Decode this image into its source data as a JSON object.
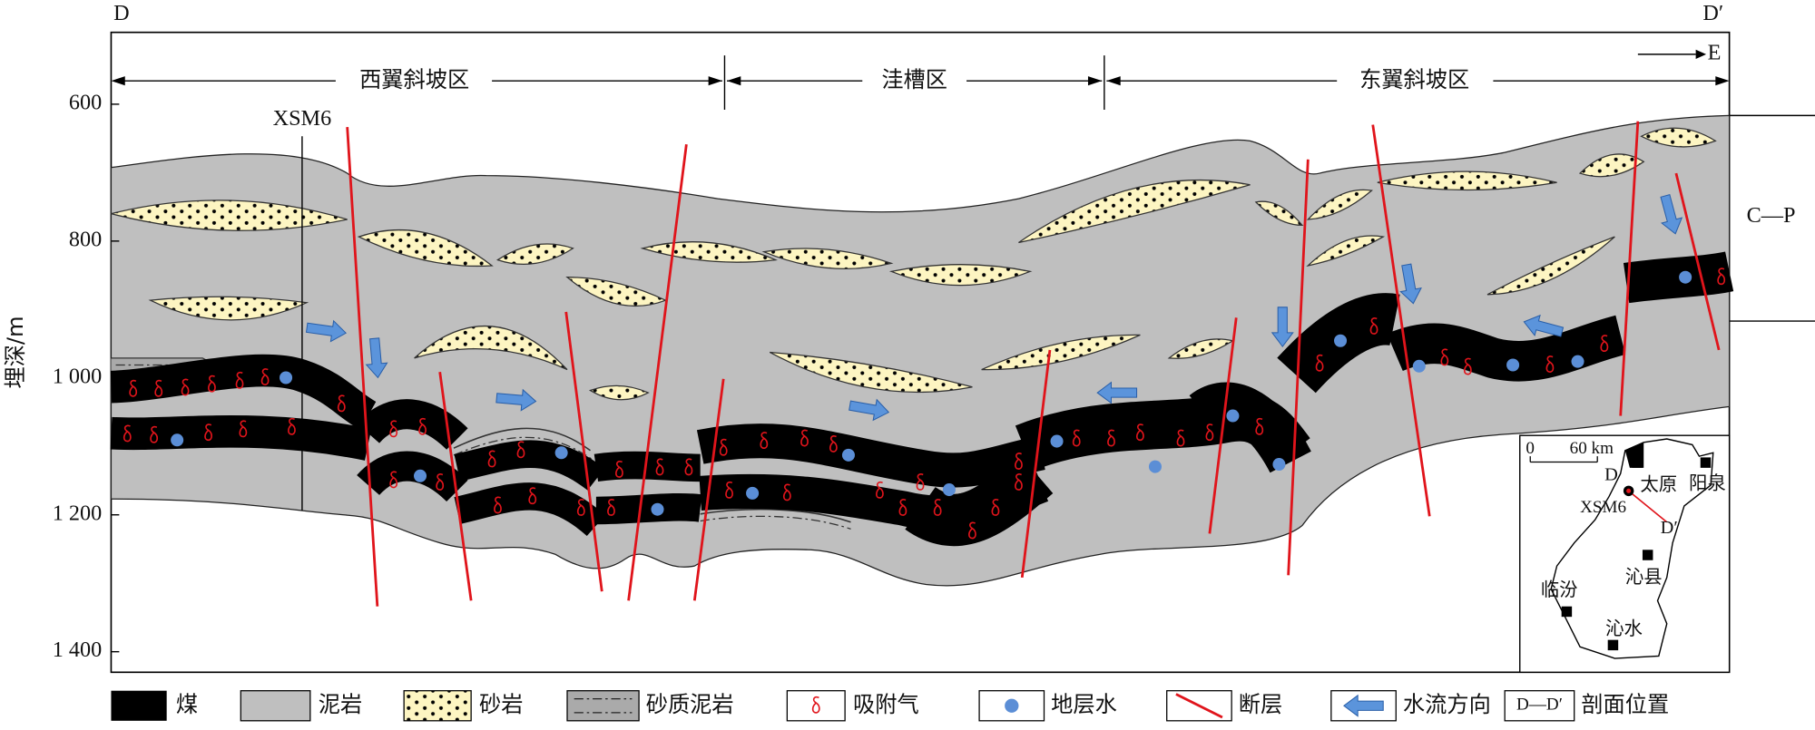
{
  "header": {
    "left_label": "D",
    "right_label": "D′",
    "direction": "E"
  },
  "zones": [
    "西翼斜坡区",
    "洼槽区",
    "东翼斜坡区"
  ],
  "well": "XSM6",
  "strata_label": "C—P",
  "depth_axis": {
    "title": "埋深/m",
    "lim": [
      495,
      1430
    ],
    "ticks": [
      600,
      800,
      {
        "value": 1000,
        "label": "1 000"
      },
      {
        "value": 1200,
        "label": "1 200"
      },
      {
        "value": 1400,
        "label": "1 400"
      }
    ]
  },
  "legend": [
    "煤",
    "泥岩",
    "砂岩",
    "砂质泥岩",
    "吸附气",
    "地层水",
    "断层",
    "水流方向",
    "剖面位置"
  ],
  "legend_section_symbol": "D—D′",
  "inset": {
    "scale_start": "0",
    "scale_end": "60 km",
    "section_start": "D",
    "section_end": "D′",
    "places": [
      "太原",
      "阳泉",
      "XSM6",
      "沁县",
      "临汾",
      "沁水"
    ]
  }
}
